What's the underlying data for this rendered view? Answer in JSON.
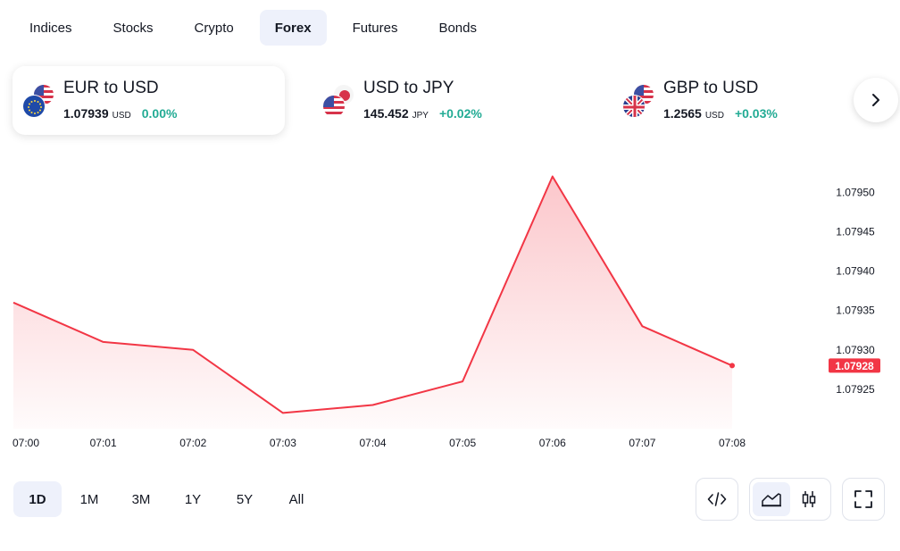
{
  "tabs": [
    {
      "label": "Indices",
      "active": false
    },
    {
      "label": "Stocks",
      "active": false
    },
    {
      "label": "Crypto",
      "active": false
    },
    {
      "label": "Forex",
      "active": true
    },
    {
      "label": "Futures",
      "active": false
    },
    {
      "label": "Bonds",
      "active": false
    }
  ],
  "tickers": [
    {
      "name": "EUR to USD",
      "price": "1.07939",
      "unit": "USD",
      "change": "0.00%"
    },
    {
      "name": "USD to JPY",
      "price": "145.452",
      "unit": "JPY",
      "change": "+0.02%"
    },
    {
      "name": "GBP to USD",
      "price": "1.2565",
      "unit": "USD",
      "change": "+0.03%"
    }
  ],
  "next_icon": "chevron-right-icon",
  "ranges": [
    {
      "label": "1D",
      "active": true
    },
    {
      "label": "1M",
      "active": false
    },
    {
      "label": "3M",
      "active": false
    },
    {
      "label": "1Y",
      "active": false
    },
    {
      "label": "5Y",
      "active": false
    },
    {
      "label": "All",
      "active": false
    }
  ],
  "controls": {
    "embed_icon": "code-icon",
    "area_icon": "area-chart-icon",
    "candles_icon": "candlestick-icon",
    "fullscreen_icon": "fullscreen-icon"
  },
  "colors": {
    "line": "#f23645",
    "positive": "#22ab94",
    "active_bg": "#eef1fb"
  },
  "chart_data": {
    "type": "area",
    "x": [
      "07:00",
      "07:01",
      "07:02",
      "07:03",
      "07:04",
      "07:05",
      "07:06",
      "07:07",
      "07:08"
    ],
    "values": [
      1.07936,
      1.07931,
      1.0793,
      1.07922,
      1.07923,
      1.07926,
      1.07952,
      1.07933,
      1.07928
    ],
    "ylim": [
      1.0792,
      1.07954
    ],
    "yticks": [
      "1.07950",
      "1.07945",
      "1.07940",
      "1.07935",
      "1.07930",
      "1.07925"
    ],
    "ytick_values": [
      1.0795,
      1.07945,
      1.0794,
      1.07935,
      1.0793,
      1.07925
    ],
    "last_value_label": "1.07928",
    "grid": false
  }
}
